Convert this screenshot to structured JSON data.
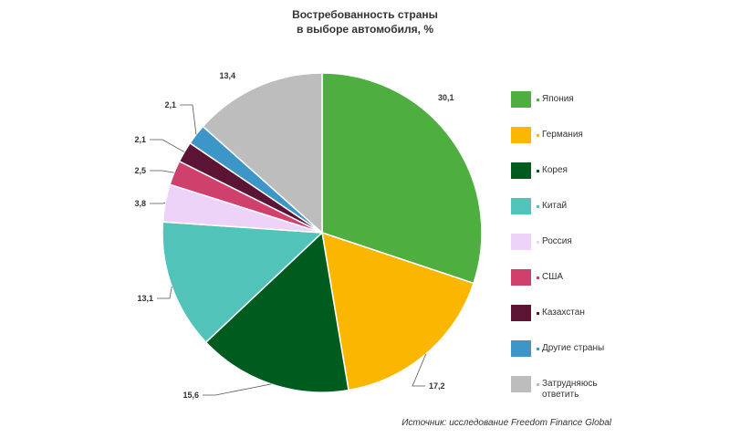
{
  "chart_data": {
    "type": "pie",
    "title": "Востребованность страны в выборе автомобиля, %",
    "title_lines": [
      "Востребованность страны",
      "в выборе автомобиля, %"
    ],
    "categories": [
      "Япония",
      "Германия",
      "Корея",
      "Китай",
      "Россия",
      "США",
      "Казахстан",
      "Другие страны",
      "Затрудняюсь ответить"
    ],
    "legend_lines": [
      [
        "Япония"
      ],
      [
        "Германия"
      ],
      [
        "Корея"
      ],
      [
        "Китай"
      ],
      [
        "Россия"
      ],
      [
        "США"
      ],
      [
        "Казахстан"
      ],
      [
        "Другие страны"
      ],
      [
        "Затрудняюсь",
        "ответить"
      ]
    ],
    "values": [
      30.1,
      17.2,
      15.6,
      13.1,
      3.8,
      2.5,
      2.1,
      2.1,
      13.4
    ],
    "value_labels": [
      "30,1",
      "17,2",
      "15,6",
      "13,1",
      "3,8",
      "2,5",
      "2,1",
      "2,1",
      "13,4"
    ],
    "colors": [
      "#4fae40",
      "#fbb600",
      "#005c1e",
      "#52c3b9",
      "#ecd3f7",
      "#cf416c",
      "#5c1434",
      "#3c96c8",
      "#bdbdbd"
    ],
    "legend_placement": "right",
    "start_angle": "12 o'clock",
    "direction": "clockwise"
  },
  "source": "Источник: исследование Freedom Finance Global"
}
